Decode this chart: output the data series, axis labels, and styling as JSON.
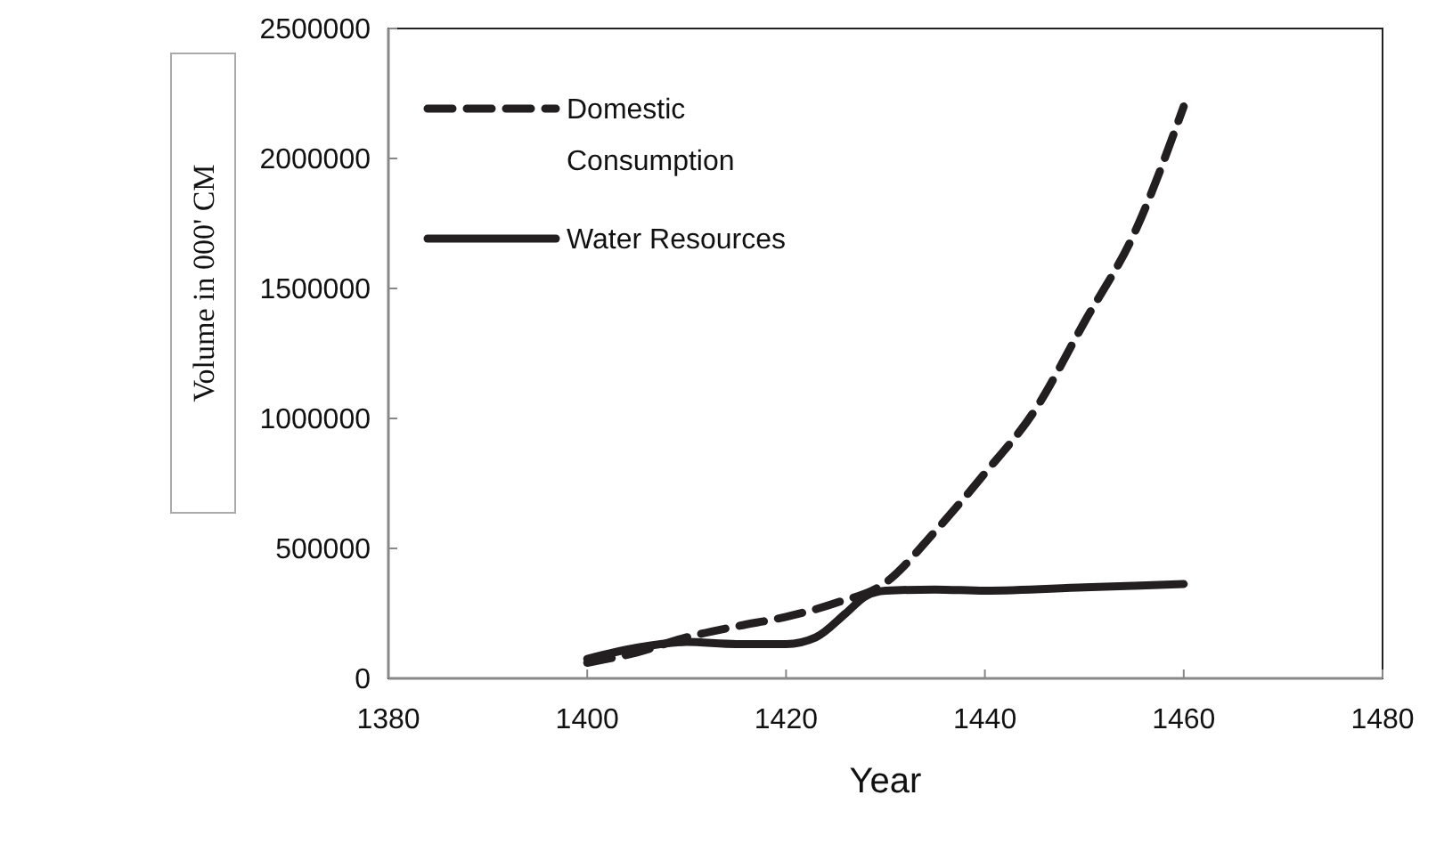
{
  "chart_data": {
    "type": "line",
    "xlabel": "Year",
    "ylabel": "Volume in 000' CM",
    "xlim": [
      1380,
      1480
    ],
    "xticks": [
      1380,
      1400,
      1420,
      1440,
      1460,
      1480
    ],
    "ylim": [
      0,
      2500000
    ],
    "yticks": [
      0,
      500000,
      1000000,
      1500000,
      2000000,
      2500000
    ],
    "legend": "top left",
    "series": [
      {
        "name": "Domestic Consumption",
        "color": "#231f20",
        "line_style": "dashed",
        "x": [
          1400,
          1405,
          1410,
          1415,
          1420,
          1425,
          1430,
          1435,
          1440,
          1445,
          1450,
          1455,
          1460
        ],
        "values": [
          60000,
          100000,
          158000,
          200000,
          237000,
          290000,
          368000,
          566000,
          789000,
          1030000,
          1370000,
          1710000,
          2200000
        ]
      },
      {
        "name": "Water Resources",
        "color": "#231f20",
        "line_style": "solid",
        "x": [
          1400,
          1405,
          1410,
          1415,
          1420,
          1423,
          1426,
          1428,
          1430,
          1435,
          1440,
          1450,
          1460
        ],
        "values": [
          75000,
          118000,
          140000,
          132000,
          132000,
          158000,
          250000,
          316000,
          337000,
          342000,
          337000,
          350000,
          363000
        ]
      }
    ]
  }
}
